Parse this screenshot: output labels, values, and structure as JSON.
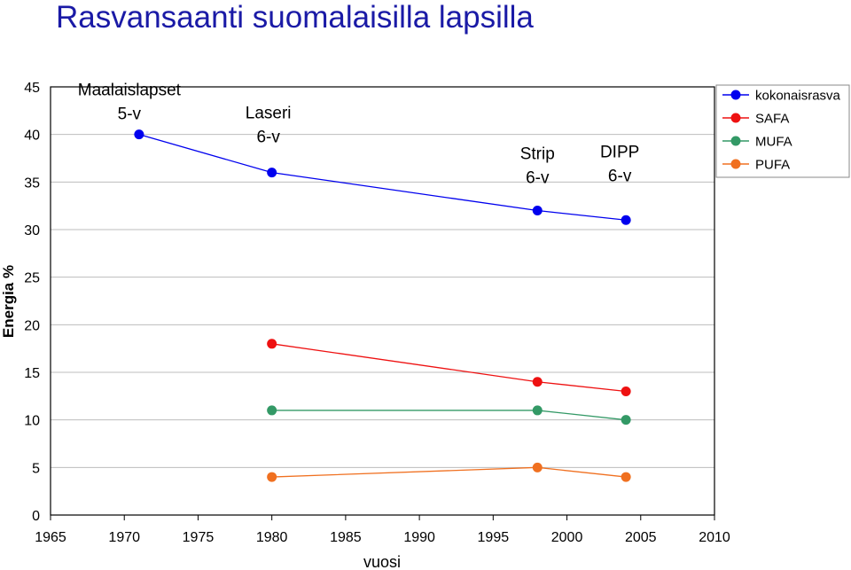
{
  "title": "Rasvansaanti suomalaisilla lapsilla",
  "chart_data": {
    "type": "line",
    "title": "Rasvansaanti suomalaisilla lapsilla",
    "xlabel": "vuosi",
    "ylabel": "Energia %",
    "xlim": [
      1965,
      2010
    ],
    "ylim": [
      0,
      45
    ],
    "xticks": [
      1965,
      1970,
      1975,
      1980,
      1985,
      1990,
      1995,
      2000,
      2005,
      2010
    ],
    "yticks": [
      0,
      5,
      10,
      15,
      20,
      25,
      30,
      35,
      40,
      45
    ],
    "grid": "horizontal",
    "legend_position": "top-right",
    "series": [
      {
        "name": "kokonaisrasva",
        "color": "#0000ee",
        "points": [
          [
            1971,
            40
          ],
          [
            1980,
            36
          ],
          [
            1998,
            32
          ],
          [
            2004,
            31
          ]
        ]
      },
      {
        "name": "SAFA",
        "color": "#ee1111",
        "points": [
          [
            1980,
            18
          ],
          [
            1998,
            14
          ],
          [
            2004,
            13
          ]
        ]
      },
      {
        "name": "MUFA",
        "color": "#339966",
        "points": [
          [
            1980,
            11
          ],
          [
            1998,
            11
          ],
          [
            2004,
            10
          ]
        ]
      },
      {
        "name": "PUFA",
        "color": "#f07020",
        "points": [
          [
            1980,
            4
          ],
          [
            1998,
            5
          ],
          [
            2004,
            4
          ]
        ]
      }
    ],
    "annotations": [
      {
        "lines": [
          "Maalaislapset",
          "5-v"
        ],
        "anchor": [
          1971,
          40
        ]
      },
      {
        "lines": [
          "Laseri",
          "6-v"
        ],
        "anchor": [
          1980,
          36
        ]
      },
      {
        "lines": [
          "Strip",
          "6-v"
        ],
        "anchor": [
          1998,
          32
        ]
      },
      {
        "lines": [
          "DIPP",
          "6-v"
        ],
        "anchor": [
          2004,
          31
        ]
      }
    ]
  }
}
